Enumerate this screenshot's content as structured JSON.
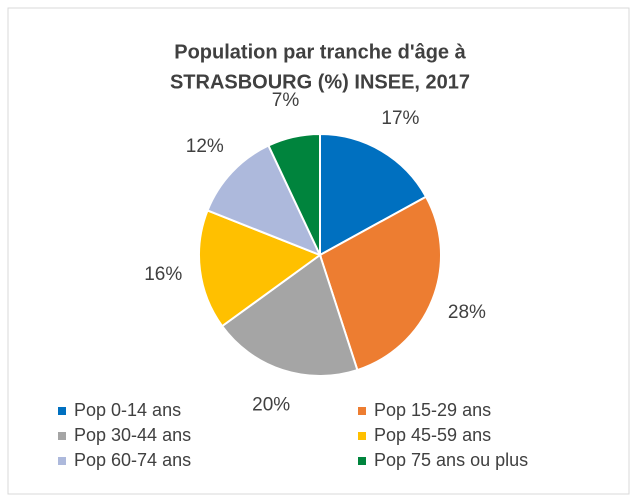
{
  "chart_data": {
    "type": "pie",
    "title": [
      "Population par tranche d'âge à",
      "STRASBOURG (%) INSEE, 2017"
    ],
    "categories": [
      "Pop 0-14 ans",
      "Pop 15-29 ans",
      "Pop 30-44 ans",
      "Pop 45-59 ans",
      "Pop 60-74 ans",
      "Pop 75 ans ou plus"
    ],
    "values": [
      17,
      28,
      20,
      16,
      12,
      7
    ],
    "value_labels": [
      "17%",
      "28%",
      "20%",
      "16%",
      "12%",
      "7%"
    ],
    "colors": [
      "#0070c0",
      "#ed7d31",
      "#a5a5a5",
      "#ffc000",
      "#adb9dc",
      "#00843d"
    ],
    "legend": "bottom"
  }
}
